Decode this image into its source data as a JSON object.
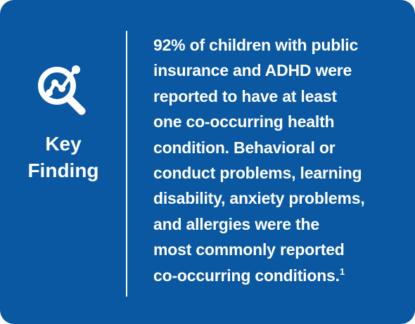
{
  "label": [
    "Key",
    "Finding"
  ],
  "lines": [
    "92% of children with public",
    "insurance and ADHD were",
    "reported to have at least",
    "one co-occurring health",
    "condition. Behavioral or",
    "conduct problems, learning",
    "disability, anxiety problems,",
    "and allergies were the",
    "most commonly reported",
    "co-occurring conditions."
  ],
  "footnote": "1"
}
